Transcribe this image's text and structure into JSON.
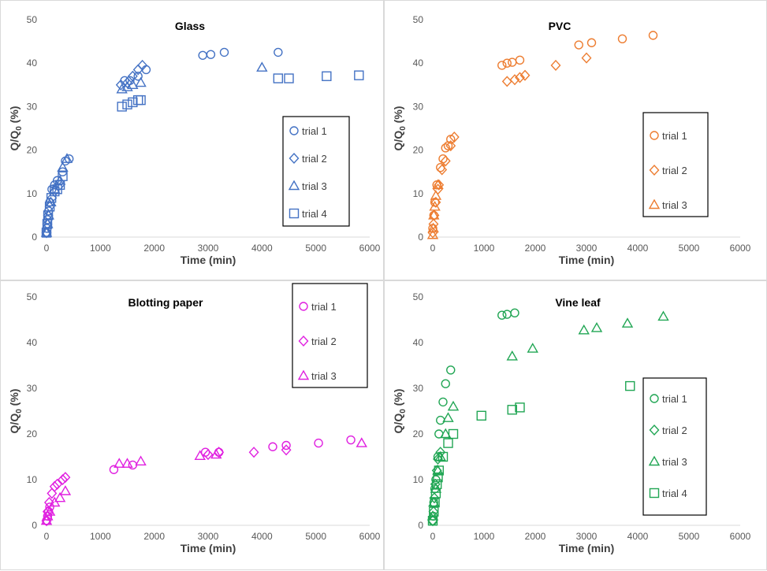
{
  "chart_data": [
    {
      "type": "scatter",
      "title": "Glass",
      "xlabel": "Time (min)",
      "ylabel": "Q/Q0 (%)",
      "ylabel_sub": "0",
      "xlim": [
        0,
        6000
      ],
      "ylim": [
        0,
        50
      ],
      "xticks": [
        0,
        1000,
        2000,
        3000,
        4000,
        5000,
        6000
      ],
      "yticks": [
        0,
        10,
        20,
        30,
        40,
        50
      ],
      "color": "#4472C4",
      "grid": false,
      "legend": "right-middle",
      "series": [
        {
          "name": "trial 1",
          "marker": "circle",
          "points": [
            [
              0,
              1
            ],
            [
              10,
              2
            ],
            [
              20,
              4
            ],
            [
              40,
              6
            ],
            [
              60,
              8
            ],
            [
              100,
              11
            ],
            [
              150,
              12
            ],
            [
              200,
              13
            ],
            [
              300,
              15
            ],
            [
              350,
              17.5
            ],
            [
              420,
              18
            ],
            [
              1450,
              36
            ],
            [
              1550,
              36
            ],
            [
              1700,
              37
            ],
            [
              1850,
              38.5
            ],
            [
              2900,
              41.8
            ],
            [
              3050,
              42
            ],
            [
              3300,
              42.5
            ],
            [
              4300,
              42.5
            ]
          ]
        },
        {
          "name": "trial 2",
          "marker": "diamond",
          "points": [
            [
              0,
              1
            ],
            [
              15,
              3
            ],
            [
              30,
              5
            ],
            [
              60,
              7
            ],
            [
              100,
              9
            ],
            [
              150,
              10.5
            ],
            [
              250,
              12
            ],
            [
              1380,
              35
            ],
            [
              1500,
              35.5
            ],
            [
              1600,
              37
            ],
            [
              1700,
              38.5
            ],
            [
              1780,
              39.5
            ]
          ]
        },
        {
          "name": "trial 3",
          "marker": "triangle",
          "points": [
            [
              0,
              1
            ],
            [
              20,
              3
            ],
            [
              40,
              5
            ],
            [
              80,
              8
            ],
            [
              150,
              11
            ],
            [
              250,
              13
            ],
            [
              300,
              16
            ],
            [
              380,
              18
            ],
            [
              1400,
              34
            ],
            [
              1500,
              34.5
            ],
            [
              1600,
              35
            ],
            [
              1750,
              35.5
            ],
            [
              4000,
              39
            ]
          ]
        },
        {
          "name": "trial 4",
          "marker": "square",
          "points": [
            [
              0,
              1
            ],
            [
              15,
              3
            ],
            [
              30,
              5
            ],
            [
              60,
              7
            ],
            [
              90,
              9
            ],
            [
              150,
              10.5
            ],
            [
              200,
              11
            ],
            [
              250,
              12
            ],
            [
              300,
              14
            ],
            [
              1400,
              30
            ],
            [
              1500,
              30.5
            ],
            [
              1600,
              31
            ],
            [
              1700,
              31.5
            ],
            [
              1750,
              31.5
            ],
            [
              4300,
              36.5
            ],
            [
              4500,
              36.5
            ],
            [
              5200,
              37
            ],
            [
              5800,
              37.2
            ]
          ]
        }
      ]
    },
    {
      "type": "scatter",
      "title": "PVC",
      "xlabel": "Time (min)",
      "ylabel": "Q/Q0 (%)",
      "ylabel_sub": "0",
      "xlim": [
        0,
        6000
      ],
      "ylim": [
        0,
        50
      ],
      "xticks": [
        0,
        1000,
        2000,
        3000,
        4000,
        5000,
        6000
      ],
      "yticks": [
        0,
        10,
        20,
        30,
        40,
        50
      ],
      "color": "#ED7D31",
      "grid": false,
      "legend": "right-middle",
      "series": [
        {
          "name": "trial 1",
          "marker": "circle",
          "points": [
            [
              0,
              2
            ],
            [
              20,
              5
            ],
            [
              40,
              8
            ],
            [
              80,
              12
            ],
            [
              150,
              16
            ],
            [
              200,
              18
            ],
            [
              250,
              20.5
            ],
            [
              300,
              21
            ],
            [
              350,
              22.5
            ],
            [
              1350,
              39.5
            ],
            [
              1450,
              40
            ],
            [
              1550,
              40.2
            ],
            [
              1700,
              40.7
            ],
            [
              2850,
              44.2
            ],
            [
              3100,
              44.7
            ],
            [
              3700,
              45.6
            ],
            [
              4300,
              46.4
            ]
          ]
        },
        {
          "name": "trial 2",
          "marker": "diamond",
          "points": [
            [
              0,
              1
            ],
            [
              15,
              3
            ],
            [
              30,
              5
            ],
            [
              60,
              8
            ],
            [
              100,
              11
            ],
            [
              120,
              12
            ],
            [
              180,
              15.5
            ],
            [
              250,
              17.5
            ],
            [
              350,
              21
            ],
            [
              420,
              23
            ],
            [
              1450,
              35.8
            ],
            [
              1600,
              36.2
            ],
            [
              1700,
              36.7
            ],
            [
              1800,
              37.2
            ],
            [
              2400,
              39.5
            ],
            [
              3000,
              41.2
            ]
          ]
        },
        {
          "name": "trial 3",
          "marker": "triangle",
          "points": [
            [
              0,
              0.5
            ],
            [
              10,
              2
            ],
            [
              20,
              5
            ],
            [
              40,
              7
            ],
            [
              60,
              9.5
            ],
            [
              100,
              12
            ]
          ]
        }
      ]
    },
    {
      "type": "scatter",
      "title": "Blotting paper",
      "xlabel": "Time (min)",
      "ylabel": "Q/Q0 (%)",
      "ylabel_sub": "0",
      "xlim": [
        0,
        6000
      ],
      "ylim": [
        0,
        50
      ],
      "xticks": [
        0,
        1000,
        2000,
        3000,
        4000,
        5000,
        6000
      ],
      "yticks": [
        0,
        10,
        20,
        30,
        40,
        50
      ],
      "color": "#E020E0",
      "grid": false,
      "legend": "top-right",
      "series": [
        {
          "name": "trial 1",
          "marker": "circle",
          "points": [
            [
              0,
              1
            ],
            [
              20,
              2
            ],
            [
              40,
              3
            ],
            [
              60,
              4
            ],
            [
              1250,
              12.2
            ],
            [
              1600,
              13.2
            ],
            [
              2950,
              16
            ],
            [
              3200,
              16
            ],
            [
              4200,
              17.2
            ],
            [
              4450,
              17.5
            ],
            [
              5050,
              18
            ],
            [
              5650,
              18.7
            ]
          ]
        },
        {
          "name": "trial 2",
          "marker": "diamond",
          "points": [
            [
              0,
              1
            ],
            [
              20,
              3
            ],
            [
              50,
              5
            ],
            [
              100,
              7
            ],
            [
              150,
              8.5
            ],
            [
              200,
              9
            ],
            [
              300,
              10
            ],
            [
              350,
              10.5
            ],
            [
              3000,
              15.5
            ],
            [
              3200,
              16
            ],
            [
              3850,
              16
            ],
            [
              4450,
              16.5
            ]
          ]
        },
        {
          "name": "trial 3",
          "marker": "triangle",
          "points": [
            [
              0,
              1
            ],
            [
              20,
              2
            ],
            [
              60,
              3
            ],
            [
              150,
              5
            ],
            [
              250,
              6
            ],
            [
              350,
              7.5
            ],
            [
              1350,
              13.5
            ],
            [
              1500,
              13.5
            ],
            [
              1750,
              14
            ],
            [
              2850,
              15.2
            ],
            [
              3150,
              15.5
            ],
            [
              5850,
              18
            ]
          ]
        }
      ]
    },
    {
      "type": "scatter",
      "title": "Vine leaf",
      "xlabel": "Time (min)",
      "ylabel": "Q/Q0 (%)",
      "ylabel_sub": "0",
      "xlim": [
        0,
        6000
      ],
      "ylim": [
        0,
        50
      ],
      "xticks": [
        0,
        1000,
        2000,
        3000,
        4000,
        5000,
        6000
      ],
      "yticks": [
        0,
        10,
        20,
        30,
        40,
        50
      ],
      "color": "#21A654",
      "grid": false,
      "legend": "right-bottom",
      "series": [
        {
          "name": "trial 1",
          "marker": "circle",
          "points": [
            [
              0,
              1
            ],
            [
              10,
              2
            ],
            [
              20,
              5
            ],
            [
              40,
              8
            ],
            [
              60,
              10
            ],
            [
              100,
              15
            ],
            [
              120,
              20
            ],
            [
              150,
              23
            ],
            [
              200,
              27
            ],
            [
              250,
              31
            ],
            [
              350,
              34
            ],
            [
              1350,
              46
            ],
            [
              1450,
              46.2
            ],
            [
              1600,
              46.5
            ]
          ]
        },
        {
          "name": "trial 2",
          "marker": "diamond",
          "points": [
            [
              0,
              1
            ],
            [
              15,
              3
            ],
            [
              30,
              6
            ],
            [
              50,
              9
            ],
            [
              80,
              12
            ],
            [
              100,
              14.5
            ],
            [
              150,
              16
            ]
          ]
        },
        {
          "name": "trial 3",
          "marker": "triangle",
          "points": [
            [
              0,
              2
            ],
            [
              20,
              5
            ],
            [
              60,
              8
            ],
            [
              100,
              12
            ],
            [
              150,
              15
            ],
            [
              250,
              20
            ],
            [
              300,
              23.5
            ],
            [
              400,
              26
            ],
            [
              1550,
              37
            ],
            [
              1950,
              38.7
            ],
            [
              2950,
              42.7
            ],
            [
              3200,
              43.2
            ],
            [
              3800,
              44.2
            ],
            [
              4500,
              45.7
            ]
          ]
        },
        {
          "name": "trial 4",
          "marker": "square",
          "points": [
            [
              0,
              1
            ],
            [
              20,
              3
            ],
            [
              40,
              5
            ],
            [
              60,
              7
            ],
            [
              80,
              9
            ],
            [
              100,
              10.5
            ],
            [
              120,
              12
            ],
            [
              200,
              15
            ],
            [
              300,
              18
            ],
            [
              400,
              20
            ],
            [
              950,
              24
            ],
            [
              1550,
              25.3
            ],
            [
              1700,
              25.8
            ],
            [
              3850,
              30.5
            ]
          ]
        }
      ]
    }
  ]
}
